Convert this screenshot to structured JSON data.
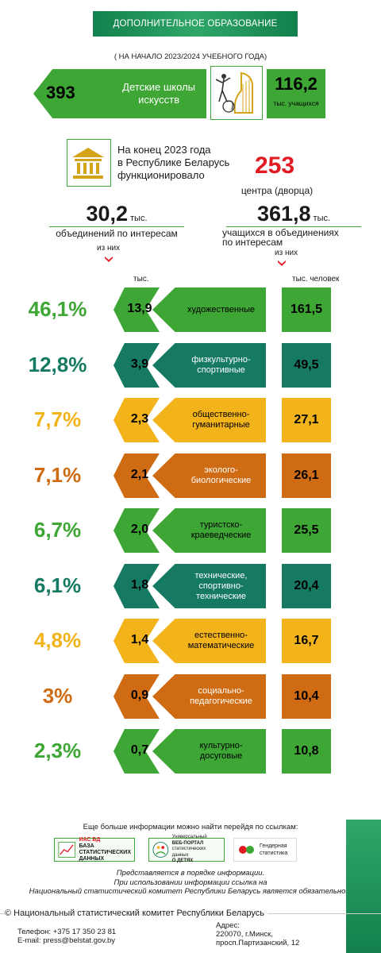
{
  "header": {
    "title": "ДОПОЛНИТЕЛЬНОЕ ОБРАЗОВАНИЕ",
    "subtitle": "( НА НАЧАЛО 2023/2024 УЧЕБНОГО ГОДА)"
  },
  "art_schools": {
    "count": "393",
    "label_line1": "Детские школы",
    "label_line2": "искусств",
    "students": "116,2",
    "students_unit": "тыс. учащихся"
  },
  "centers": {
    "text_line1": "На конец 2023 года",
    "text_line2": "в  Республике Беларусь",
    "text_line3": "функционировало",
    "count": "253",
    "label": "центра (дворца)"
  },
  "associations": {
    "value": "30,2",
    "unit": "тыс.",
    "label": "объединений по интересам",
    "of_them": "из них",
    "column_unit": "тыс."
  },
  "students_assoc": {
    "value": "361,8",
    "unit": "тыс.",
    "label_line1": "учащихся в объединениях",
    "label_line2": "по интересам",
    "of_them": "из них",
    "column_unit": "тыс. человек"
  },
  "colors": {
    "green": "#3ea634",
    "teal": "#167a62",
    "yellow": "#f2b31b",
    "orange": "#cf6b12",
    "red": "#e21b23"
  },
  "categories": [
    {
      "pct": "46,1%",
      "count": "13,9",
      "name_line1": "художественные",
      "name_line2": "",
      "name_line3": "",
      "students": "161,5",
      "color": "#3ea634",
      "pct_color": "#3ea634"
    },
    {
      "pct": "12,8%",
      "count": "3,9",
      "name_line1": "физкультурно-",
      "name_line2": "спортивные",
      "name_line3": "",
      "students": "49,5",
      "color": "#167a62",
      "pct_color": "#167a62"
    },
    {
      "pct": "7,7%",
      "count": "2,3",
      "name_line1": "общественно-",
      "name_line2": "гуманитарные",
      "name_line3": "",
      "students": "27,1",
      "color": "#f2b31b",
      "pct_color": "#f2b31b"
    },
    {
      "pct": "7,1%",
      "count": "2,1",
      "name_line1": "эколого-",
      "name_line2": "биологические",
      "name_line3": "",
      "students": "26,1",
      "color": "#cf6b12",
      "pct_color": "#cf6b12"
    },
    {
      "pct": "6,7%",
      "count": "2,0",
      "name_line1": "туристско-",
      "name_line2": "краеведческие",
      "name_line3": "",
      "students": "25,5",
      "color": "#3ea634",
      "pct_color": "#3ea634"
    },
    {
      "pct": "6,1%",
      "count": "1,8",
      "name_line1": "технические,",
      "name_line2": "спортивно-",
      "name_line3": "технические",
      "students": "20,4",
      "color": "#167a62",
      "pct_color": "#167a62"
    },
    {
      "pct": "4,8%",
      "count": "1,4",
      "name_line1": "естественно-",
      "name_line2": "математические",
      "name_line3": "",
      "students": "16,7",
      "color": "#f2b31b",
      "pct_color": "#f2b31b"
    },
    {
      "pct": "3%",
      "count": "0,9",
      "name_line1": "социально-",
      "name_line2": "педагогические",
      "name_line3": "",
      "students": "10,4",
      "color": "#cf6b12",
      "pct_color": "#cf6b12"
    },
    {
      "pct": "2,3%",
      "count": "0,7",
      "name_line1": "культурно-",
      "name_line2": "досуговые",
      "name_line3": "",
      "students": "10,8",
      "color": "#3ea634",
      "pct_color": "#3ea634"
    }
  ],
  "footer": {
    "more_info": "Еще больше  информации можно найти перейдя по ссылкам:",
    "link1_abbr": "ИАС БД",
    "link1_line1": "БАЗА",
    "link1_line2": "СТАТИСТИЧЕСКИХ",
    "link1_line3": "ДАННЫХ",
    "link2_line1": "Универсальный",
    "link2_line2": "ВЕБ-ПОРТАЛ",
    "link2_line3": "статистических данных",
    "link2_line4": "О ДЕТЯХ",
    "link3_line1": "Гендерная",
    "link3_line2": "статистика",
    "note1": "Представляется в порядке информации.",
    "note2": "При использовании информации ссылка на",
    "note3": "Национальный статистический комитет Республики Беларусь является обязательной.",
    "copyright": "© Национальный статистический комитет Республики Беларусь",
    "phone": "Телефон: +375 17 350 23 81",
    "email": "E-mail: press@belstat.gov.by",
    "address_line1": "Адрес:",
    "address_line2": "220070, г.Минск,",
    "address_line3": "просп.Партизанский, 12"
  }
}
